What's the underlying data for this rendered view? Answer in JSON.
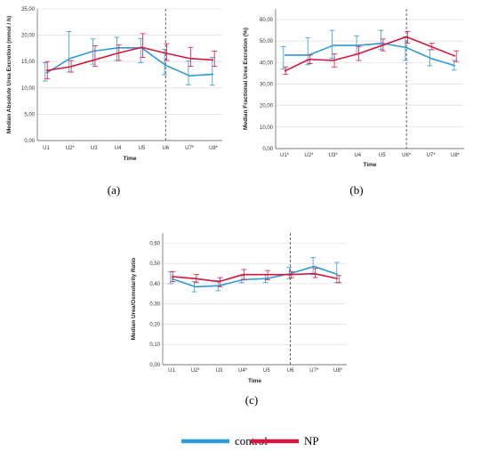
{
  "colors": {
    "control": "#2e9bd6",
    "np": "#d6163e",
    "grid": "#d9d9d9",
    "axis": "#555555",
    "divider": "#555555"
  },
  "legend": {
    "control_label": "control",
    "np_label": "NP",
    "placement": "bottom-center"
  },
  "chart_data": [
    {
      "type": "line",
      "panel": "(a)",
      "ylabel": "Median Absolute Urea Excretion (mmol / h)",
      "xlabel": "Time",
      "categories": [
        "U1",
        "U2*",
        "U3",
        "U4",
        "U5",
        "U6",
        "U7*",
        "U8*"
      ],
      "ylim": [
        0,
        25
      ],
      "yticks": [
        "0,00",
        "5,00",
        "10,00",
        "15,00",
        "20,00",
        "25,00"
      ],
      "ytick_values": [
        0,
        5,
        10,
        15,
        20,
        25
      ],
      "divider_after": "U6",
      "grid": true,
      "series": [
        {
          "name": "control",
          "values": [
            12.8,
            15.6,
            17.0,
            17.6,
            17.6,
            14.3,
            12.3,
            12.6
          ],
          "err_low": [
            11.3,
            13.0,
            14.5,
            15.2,
            14.8,
            12.5,
            10.6,
            10.5
          ],
          "err_high": [
            14.8,
            20.7,
            19.3,
            19.6,
            19.4,
            17.3,
            15.1,
            15.8
          ]
        },
        {
          "name": "NP",
          "values": [
            13.3,
            14.0,
            15.3,
            16.6,
            17.7,
            16.6,
            15.6,
            15.3
          ],
          "err_low": [
            11.7,
            13.0,
            14.1,
            15.2,
            15.8,
            15.2,
            14.1,
            14.1
          ],
          "err_high": [
            15.0,
            15.2,
            18.0,
            18.2,
            20.3,
            18.4,
            17.7,
            17.0
          ]
        }
      ]
    },
    {
      "type": "line",
      "panel": "(b)",
      "ylabel": "Median Fractional Urea Excretion (%)",
      "xlabel": "Time",
      "categories": [
        "U1*",
        "U2*",
        "U3*",
        "U4",
        "U5",
        "U6*",
        "U7*",
        "U8*"
      ],
      "ylim": [
        0,
        65
      ],
      "yticks": [
        "0,00",
        "10,00",
        "20,00",
        "30,00",
        "40,00",
        "50,00",
        "60,00"
      ],
      "ytick_values": [
        0,
        10,
        20,
        30,
        40,
        50,
        60
      ],
      "divider_after": "U6*",
      "grid": true,
      "series": [
        {
          "name": "control",
          "values": [
            43.5,
            43.5,
            48.0,
            48.0,
            49.0,
            47.0,
            42.0,
            38.5
          ],
          "err_low": [
            37.0,
            39.0,
            42.0,
            44.0,
            46.0,
            41.0,
            38.5,
            36.5
          ],
          "err_high": [
            47.5,
            51.5,
            55.0,
            52.5,
            55.0,
            52.0,
            46.0,
            41.0
          ]
        },
        {
          "name": "NP",
          "values": [
            36.0,
            41.5,
            41.0,
            44.0,
            48.0,
            52.0,
            47.5,
            43.0
          ],
          "err_low": [
            34.5,
            39.5,
            38.0,
            41.0,
            45.5,
            49.0,
            46.0,
            40.5
          ],
          "err_high": [
            38.0,
            43.5,
            44.0,
            47.5,
            51.0,
            54.5,
            49.0,
            45.5
          ]
        }
      ]
    },
    {
      "type": "line",
      "panel": "(c)",
      "ylabel": "Median Urea/Osmolarity Ratio",
      "xlabel": "Time",
      "categories": [
        "U1",
        "U2*",
        "U3",
        "U4*",
        "U5",
        "U6",
        "U7*",
        "U8*"
      ],
      "ylim": [
        0,
        0.65
      ],
      "yticks": [
        "0,00",
        "0,10",
        "0,20",
        "0,30",
        "0,40",
        "0,50",
        "0,60"
      ],
      "ytick_values": [
        0,
        0.1,
        0.2,
        0.3,
        0.4,
        0.5,
        0.6
      ],
      "divider_after": "U6",
      "grid": true,
      "series": [
        {
          "name": "control",
          "values": [
            0.425,
            0.385,
            0.39,
            0.42,
            0.425,
            0.45,
            0.485,
            0.445
          ],
          "err_low": [
            0.4,
            0.36,
            0.365,
            0.405,
            0.405,
            0.425,
            0.445,
            0.405
          ],
          "err_high": [
            0.46,
            0.41,
            0.415,
            0.44,
            0.445,
            0.48,
            0.53,
            0.505
          ]
        },
        {
          "name": "NP",
          "values": [
            0.435,
            0.425,
            0.41,
            0.445,
            0.445,
            0.445,
            0.45,
            0.425
          ],
          "err_low": [
            0.41,
            0.405,
            0.385,
            0.42,
            0.42,
            0.43,
            0.43,
            0.405
          ],
          "err_high": [
            0.46,
            0.445,
            0.43,
            0.47,
            0.465,
            0.46,
            0.475,
            0.44
          ]
        }
      ]
    }
  ]
}
